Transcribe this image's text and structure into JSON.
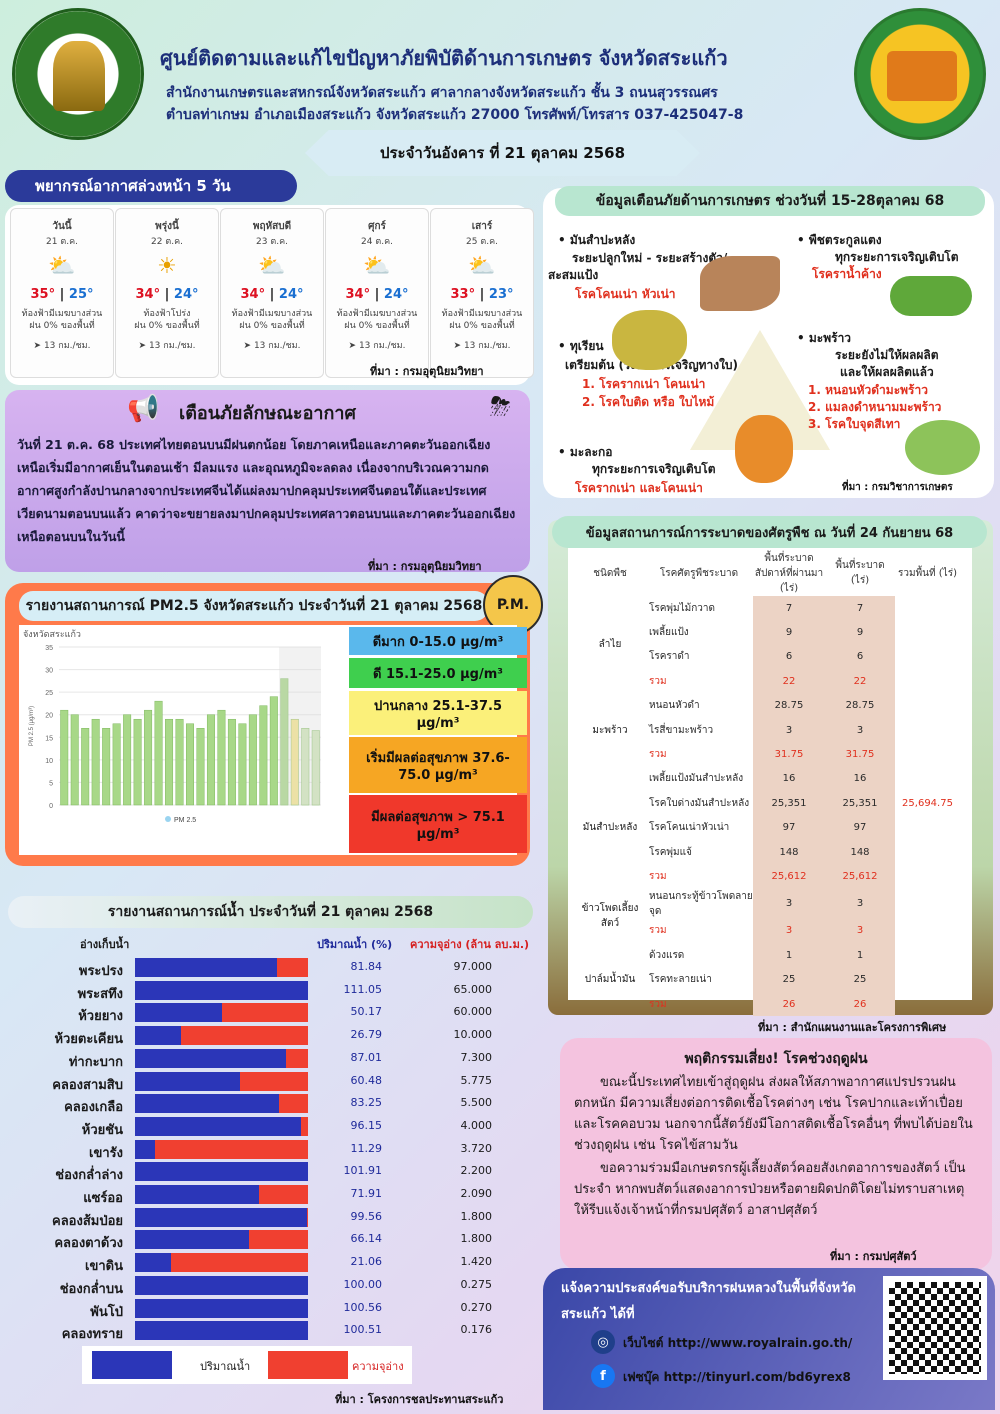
{
  "header": {
    "title": "ศูนย์ติดตามและแก้ไขปัญหาภัยพิบัติด้านการเกษตร จังหวัดสระแก้ว",
    "sub1": "สำนักงานเกษตรและสหกรณ์จังหวัดสระแก้ว ศาลากลางจังหวัดสระแก้ว ชั้น 3 ถนนสุวรรณศร",
    "sub2": "ตำบลท่าเกษม อำเภอเมืองสระแก้ว จังหวัดสระแก้ว 27000 โทรศัพท์/โทรสาร 037-425047-8",
    "date": "ประจำวันอังคาร ที่ 21 ตุลาคม 2568"
  },
  "forecast": {
    "title": "พยากรณ์อากาศล่วงหน้า 5 วัน",
    "source": "ที่มา : กรมอุตุนิยมวิทยา",
    "days": [
      {
        "day": "วันนี้",
        "date": "21 ต.ค.",
        "icon": "partly-cloudy-icon",
        "hi": "35°",
        "lo": "25°",
        "desc": "ท้องฟ้ามีเมฆบางส่วน",
        "rain": "ฝน 0% ของพื้นที่",
        "wind": "13 กม./ชม."
      },
      {
        "day": "พรุ่งนี้",
        "date": "22 ต.ค.",
        "icon": "sunny-icon",
        "hi": "34°",
        "lo": "24°",
        "desc": "ท้องฟ้าโปร่ง",
        "rain": "ฝน 0% ของพื้นที่",
        "wind": "13 กม./ชม."
      },
      {
        "day": "พฤหัสบดี",
        "date": "23 ต.ค.",
        "icon": "partly-cloudy-icon",
        "hi": "34°",
        "lo": "24°",
        "desc": "ท้องฟ้ามีเมฆบางส่วน",
        "rain": "ฝน 0% ของพื้นที่",
        "wind": "13 กม./ชม."
      },
      {
        "day": "ศุกร์",
        "date": "24 ต.ค.",
        "icon": "partly-cloudy-icon",
        "hi": "34°",
        "lo": "24°",
        "desc": "ท้องฟ้ามีเมฆบางส่วน",
        "rain": "ฝน 0% ของพื้นที่",
        "wind": "13 กม./ชม."
      },
      {
        "day": "เสาร์",
        "date": "25 ต.ค.",
        "icon": "partly-cloudy-icon",
        "hi": "33°",
        "lo": "23°",
        "desc": "ท้องฟ้ามีเมฆบางส่วน",
        "rain": "ฝน 0% ของพื้นที่",
        "wind": "13 กม./ชม."
      }
    ]
  },
  "weather_warning": {
    "title": "เตือนภัยลักษณะอากาศ",
    "text": "วันที่ 21 ต.ค. 68 ประเทศไทยตอนบนมีฝนตกน้อย โดยภาคเหนือและภาคตะวันออกเฉียงเหนือเริ่มมีอากาศเย็นในตอนเช้า มีลมแรง และอุณหภูมิจะลดลง เนื่องจากบริเวณความกดอากาศสูงกำลังปานกลางจากประเทศจีนได้แผ่ลงมาปกคลุมประเทศจีนตอนใต้และประเทศเวียดนามตอนบนแล้ว คาดว่าจะขยายลงมาปกคลุมประเทศลาวตอนบนและภาคตะวันออกเฉียงเหนือตอนบนในวันนี้",
    "source": "ที่มา : กรมอุตุนิยมวิทยา"
  },
  "pm25": {
    "title": "รายงานสถานการณ์ PM2.5 จังหวัดสระแก้ว ประจำวันที่ 21 ตุลาคม 2568",
    "badge": "P.M.",
    "url": "http://pm25.gistda.or.th/",
    "levels": [
      {
        "label": "ดีมาก 0-15.0 μg/m³",
        "color": "#5ab8ec"
      },
      {
        "label": "ดี 15.1-25.0 μg/m³",
        "color": "#3fcf4e"
      },
      {
        "label": "ปานกลาง 25.1-37.5 μg/m³",
        "color": "#fbf07a"
      },
      {
        "label": "เริ่มมีผลต่อสุขภาพ 37.6-75.0 μg/m³",
        "color": "#f6a623"
      },
      {
        "label": "มีผลต่อสุขภาพ > 75.1 μg/m³",
        "color": "#f0382b"
      }
    ]
  },
  "chart_data": {
    "type": "bar",
    "title": "จังหวัดสระแก้ว",
    "ylabel": "PM 2.5 (μg/m³)",
    "ylim": [
      0,
      35
    ],
    "yticks": [
      0,
      5,
      10,
      15,
      20,
      25,
      30,
      35
    ],
    "series": [
      {
        "name": "PM 2.5",
        "values": [
          21,
          20,
          17,
          19,
          17,
          18,
          20,
          19,
          21,
          23,
          19,
          19,
          18,
          17,
          20,
          21,
          19,
          18,
          20,
          22,
          24,
          28,
          19,
          17,
          16.5
        ]
      }
    ]
  },
  "water": {
    "title": "รายงานสถานการณ์น้ำ ประจำวันที่ 21 ตุลาคม 2568",
    "col_name": "อ่างเก็บน้ำ",
    "col_pct": "ปริมาณน้ำ (%)",
    "col_cap": "ความจุอ่าง (ล้าน ลบ.ม.)",
    "legend_volume": "ปริมาณน้ำ",
    "legend_capacity": "ความจุอ่าง",
    "source": "ที่มา : โครงการชลประทานสระแก้ว",
    "rows": [
      {
        "name": "พระปรง",
        "pct": "81.84",
        "fill": 0.8184,
        "cap": "97.000"
      },
      {
        "name": "พระสทึง",
        "pct": "111.05",
        "fill": 1.0,
        "cap": "65.000"
      },
      {
        "name": "ห้วยยาง",
        "pct": "50.17",
        "fill": 0.5017,
        "cap": "60.000"
      },
      {
        "name": "ห้วยตะเคียน",
        "pct": "26.79",
        "fill": 0.2679,
        "cap": "10.000"
      },
      {
        "name": "ท่ากะบาก",
        "pct": "87.01",
        "fill": 0.8701,
        "cap": "7.300"
      },
      {
        "name": "คลองสามสิบ",
        "pct": "60.48",
        "fill": 0.6048,
        "cap": "5.775"
      },
      {
        "name": "คลองเกลือ",
        "pct": "83.25",
        "fill": 0.8325,
        "cap": "5.500"
      },
      {
        "name": "ห้วยชัน",
        "pct": "96.15",
        "fill": 0.9615,
        "cap": "4.000"
      },
      {
        "name": "เขารัง",
        "pct": "11.29",
        "fill": 0.1129,
        "cap": "3.720"
      },
      {
        "name": "ช่องกล่ำล่าง",
        "pct": "101.91",
        "fill": 1.0,
        "cap": "2.200"
      },
      {
        "name": "แซร์ออ",
        "pct": "71.91",
        "fill": 0.7191,
        "cap": "2.090"
      },
      {
        "name": "คลองส้มป่อย",
        "pct": "99.56",
        "fill": 0.9956,
        "cap": "1.800"
      },
      {
        "name": "คลองตาด้วง",
        "pct": "66.14",
        "fill": 0.6614,
        "cap": "1.800"
      },
      {
        "name": "เขาดิน",
        "pct": "21.06",
        "fill": 0.2106,
        "cap": "1.420"
      },
      {
        "name": "ช่องกล่ำบน",
        "pct": "100.00",
        "fill": 1.0,
        "cap": "0.275"
      },
      {
        "name": "พันโป่",
        "pct": "100.56",
        "fill": 1.0,
        "cap": "0.270"
      },
      {
        "name": "คลองทราย",
        "pct": "100.51",
        "fill": 1.0,
        "cap": "0.176"
      }
    ]
  },
  "agri_warning": {
    "title": "ข้อมูลเตือนภัยด้านการเกษตร ช่วงวันที่ 15-28ตุลาคม 68",
    "source": "ที่มา : กรมวิชาการเกษตร",
    "cassava": {
      "name": "มันสำปะหลัง",
      "stage": "ระยะปลูกใหม่ - ระยะสร้างตัว/",
      "stage2": "สะสมแป้ง",
      "risk": "โรคโคนเน่า หัวเน่า"
    },
    "cucumber": {
      "name": "พืชตระกูลแตง",
      "stage": "ทุกระยะการเจริญเติบโต",
      "risk": "โรคราน้ำค้าง"
    },
    "durian": {
      "name": "ทุเรียน",
      "stage": "เตรียมต้น (ระยะการเจริญทางใบ)",
      "risk1": "1. โรครากเน่า โคนเน่า",
      "risk2": "2. โรคใบติด หรือ ใบไหม้"
    },
    "coconut": {
      "name": "มะพร้าว",
      "stage": "ระยะยังไม่ให้ผลผลิต",
      "stage2": "และให้ผลผลิตแล้ว",
      "risk1": "1. หนอนหัวดำมะพร้าว",
      "risk2": "2. แมลงดำหนามมะพร้าว",
      "risk3": "3. โรคใบจุดสีเทา"
    },
    "papaya": {
      "name": "มะละกอ",
      "stage": "ทุกระยะการเจริญเติบโต",
      "risk": "โรครากเน่า และโคนเน่า"
    }
  },
  "pest": {
    "title": "ข้อมูลสถานการณ์การระบาดของศัตรูพืช ณ วันที่ 24 กันยายน 68",
    "headers": [
      "ชนิดพืช",
      "โรคศัตรูพืชระบาด",
      "พื้นที่ระบาดสัปดาห์ที่ผ่านมา (ไร่)",
      "พื้นที่ระบาด (ไร่)",
      "รวมพื้นที่ (ไร่)"
    ],
    "source": "ที่มา : สำนักแผนงานและโครงการพิเศษ",
    "total": "25,694.75",
    "groups": [
      {
        "crop": "ลำไย",
        "rows": [
          [
            "โรคพุ่มไม้กวาด",
            "7",
            "7"
          ],
          [
            "เพลี้ยแป้ง",
            "9",
            "9"
          ],
          [
            "โรคราดำ",
            "6",
            "6"
          ],
          [
            "รวม",
            "22",
            "22"
          ]
        ]
      },
      {
        "crop": "มะพร้าว",
        "rows": [
          [
            "หนอนหัวดำ",
            "28.75",
            "28.75"
          ],
          [
            "ไรสี่ขามะพร้าว",
            "3",
            "3"
          ],
          [
            "รวม",
            "31.75",
            "31.75"
          ]
        ]
      },
      {
        "crop": "มันสำปะหลัง",
        "rows": [
          [
            "เพลี้ยแป้งมันสำปะหลัง",
            "16",
            "16"
          ],
          [
            "โรคใบด่างมันสำปะหลัง",
            "25,351",
            "25,351"
          ],
          [
            "โรคโคนเน่าหัวเน่า",
            "97",
            "97"
          ],
          [
            "โรคพุ่มแจ้",
            "148",
            "148"
          ],
          [
            "รวม",
            "25,612",
            "25,612"
          ]
        ]
      },
      {
        "crop": "ข้าวโพดเลี้ยงสัตว์",
        "rows": [
          [
            "หนอนกระทู้ข้าวโพดลายจุด",
            "3",
            "3"
          ],
          [
            "รวม",
            "3",
            "3"
          ]
        ]
      },
      {
        "crop": "ปาล์มน้ำมัน",
        "rows": [
          [
            "ด้วงแรด",
            "1",
            "1"
          ],
          [
            "โรคทะลายเน่า",
            "25",
            "25"
          ],
          [
            "รวม",
            "26",
            "26"
          ]
        ]
      }
    ]
  },
  "behavior": {
    "title": "พฤติกรรมเสี่ยง! โรคช่วงฤดูฝน",
    "p1": "ขณะนี้ประเทศไทยเข้าสู่ฤดูฝน ส่งผลให้สภาพอากาศแปรปรวนฝนตกหนัก มีความเสี่ยงต่อการติดเชื้อโรคต่างๆ เช่น โรคปากและเท้าเปื่อย และโรคคอบวม นอกจากนี้สัตว์ยังมีโอกาสติดเชื้อโรคอื่นๆ ที่พบได้บ่อยในช่วงฤดูฝน เช่น โรคไข้สามวัน",
    "p2": "ขอความร่วมมือเกษตรกรผู้เลี้ยงสัตว์คอยสังเกตอาการของสัตว์ เป็นประจำ หากพบสัตว์แสดงอาการป่วยหรือตายผิดปกติโดยไม่ทราบสาเหตุให้รีบแจ้งเจ้าหน้าที่กรมปศุสัตว์ อาสาปศุสัตว์",
    "source": "ที่มา : กรมปศุสัตว์"
  },
  "rain": {
    "title": "แจ้งความประสงค์ขอรับบริการฝนหลวงในพื้นที่จังหวัดสระแก้ว ได้ที่",
    "web": "เว็บไซต์ http://www.royalrain.go.th/",
    "fb": "เฟซบุ๊ค http://tinyurl.com/bd6yrex8"
  }
}
